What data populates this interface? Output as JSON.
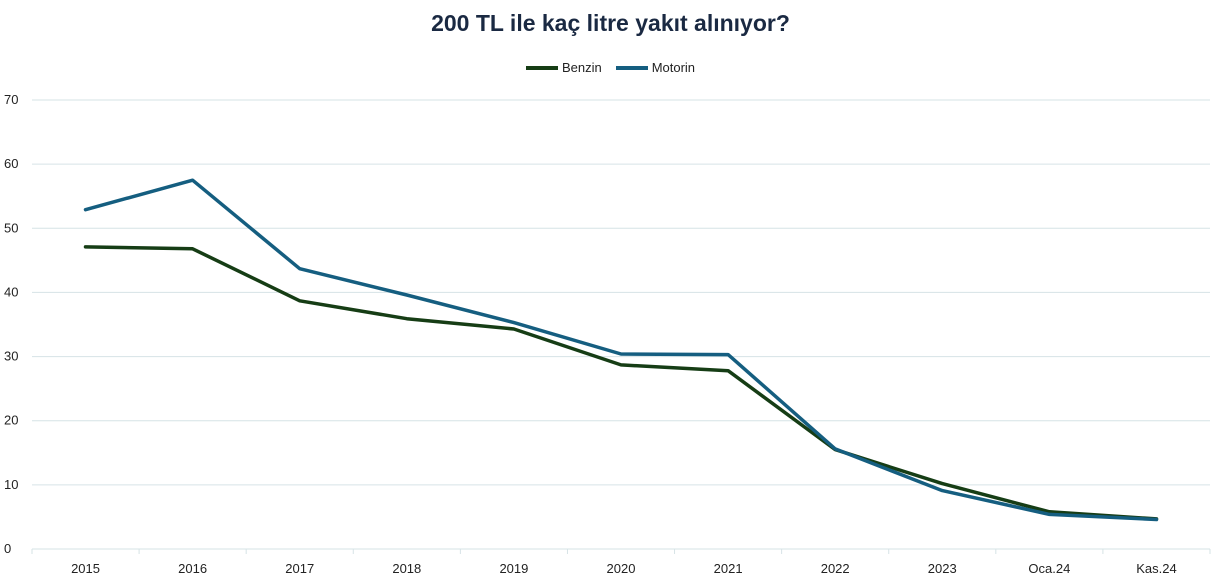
{
  "chart_data": {
    "type": "line",
    "title": "200 TL ile kaç litre yakıt alınıyor?",
    "categories": [
      "2015",
      "2016",
      "2017",
      "2018",
      "2019",
      "2020",
      "2021",
      "2022",
      "2023",
      "Oca.24",
      "Kas.24"
    ],
    "series": [
      {
        "name": "Benzin",
        "color": "#163d15",
        "values": [
          47.1,
          46.8,
          38.7,
          35.9,
          34.3,
          28.7,
          27.8,
          15.5,
          10.2,
          5.8,
          4.7
        ]
      },
      {
        "name": "Motorin",
        "color": "#155e80",
        "values": [
          52.9,
          57.5,
          43.7,
          39.6,
          35.3,
          30.4,
          30.3,
          15.6,
          9.1,
          5.4,
          4.6
        ]
      }
    ],
    "ylim": [
      0,
      70
    ],
    "yticks": [
      0,
      10,
      20,
      30,
      40,
      50,
      60,
      70
    ],
    "xlabel": "",
    "ylabel": "",
    "grid": true,
    "legend_position": "top-center"
  }
}
